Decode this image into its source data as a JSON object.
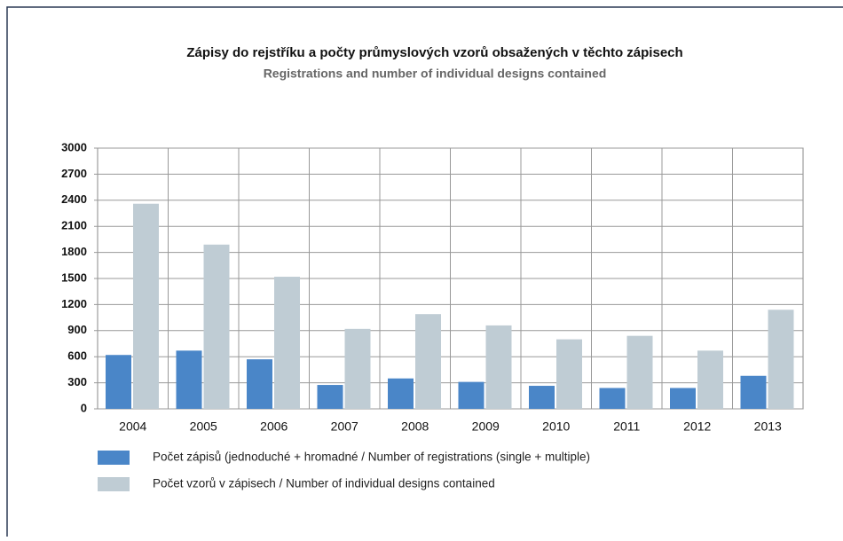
{
  "chart_data": {
    "type": "bar",
    "title": "Zápisy do rejstříku a počty průmyslových vzorů obsažených v těchto zápisech",
    "subtitle": "Registrations and number of individual designs contained",
    "categories": [
      "2004",
      "2005",
      "2006",
      "2007",
      "2008",
      "2009",
      "2010",
      "2011",
      "2012",
      "2013"
    ],
    "series": [
      {
        "name": "Počet zápisů (jednoduché + hromadné / Number of registrations (single + multiple)",
        "color": "#4a86c8",
        "values": [
          620,
          670,
          570,
          275,
          350,
          310,
          265,
          240,
          240,
          380
        ]
      },
      {
        "name": "Počet vzorů v zápisech / Number of individual designs contained",
        "color": "#bfccd4",
        "values": [
          2360,
          1890,
          1520,
          920,
          1090,
          960,
          800,
          840,
          670,
          1140
        ]
      }
    ],
    "ylim": [
      0,
      3000
    ],
    "yticks": [
      0,
      300,
      600,
      900,
      1200,
      1500,
      1800,
      2100,
      2400,
      2700,
      3000
    ],
    "grid": true
  }
}
